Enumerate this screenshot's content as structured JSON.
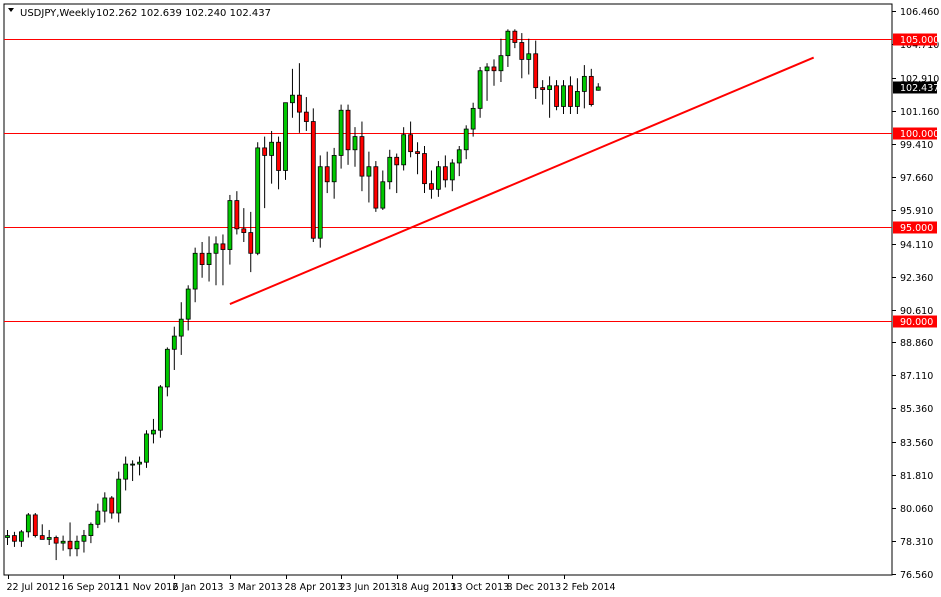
{
  "header": {
    "symbol": "USDJPY,Weekly",
    "ohlc": "102.262 102.639 102.240 102.437"
  },
  "chart_data": {
    "type": "candlestick",
    "symbol": "USDJPY",
    "timeframe": "Weekly",
    "last_ohlc": {
      "open": 102.262,
      "high": 102.639,
      "low": 102.24,
      "close": 102.437
    },
    "current_price": 102.437,
    "current_price_label": "102.437",
    "ylim": [
      76.56,
      106.42
    ],
    "y_ticks": [
      "106.460",
      "104.710",
      "102.910",
      "101.160",
      "99.410",
      "97.660",
      "95.910",
      "94.110",
      "92.360",
      "90.610",
      "88.860",
      "87.110",
      "85.360",
      "83.560",
      "81.810",
      "80.060",
      "78.310",
      "76.560"
    ],
    "x_ticks": [
      "22 Jul 2012",
      "16 Sep 2012",
      "11 Nov 2012",
      "6 Jan 2013",
      "3 Mar 2013",
      "28 Apr 2013",
      "23 Jun 2013",
      "18 Aug 2013",
      "13 Oct 2013",
      "8 Dec 2013",
      "2 Feb 2014"
    ],
    "x_tick_bar_index": [
      0,
      8,
      16,
      24,
      32,
      40,
      48,
      56,
      64,
      72,
      80
    ],
    "horizontal_levels": [
      {
        "value": 105.0,
        "label": "105.000"
      },
      {
        "value": 100.0,
        "label": "100.000"
      },
      {
        "value": 95.0,
        "label": "95.000"
      },
      {
        "value": 90.0,
        "label": "90.000"
      }
    ],
    "trendline": {
      "start": {
        "bar": 32,
        "price": 90.9
      },
      "end": {
        "bar": 116,
        "price": 104.0
      }
    },
    "colors": {
      "bull": "#00c800",
      "bear": "#ff0000",
      "levels": "#ff0000",
      "trendline": "#ff0000",
      "price_tag": "#000000"
    },
    "candles": [
      [
        78.5,
        78.9,
        78.1,
        78.6
      ],
      [
        78.6,
        78.8,
        78.0,
        78.3
      ],
      [
        78.3,
        78.9,
        78.0,
        78.8
      ],
      [
        78.8,
        79.8,
        78.5,
        79.7
      ],
      [
        79.7,
        79.8,
        78.5,
        78.6
      ],
      [
        78.6,
        79.2,
        78.4,
        78.4
      ],
      [
        78.4,
        78.9,
        78.1,
        78.5
      ],
      [
        78.5,
        78.6,
        77.3,
        78.2
      ],
      [
        78.2,
        78.6,
        77.8,
        78.3
      ],
      [
        78.3,
        79.3,
        77.5,
        77.9
      ],
      [
        77.9,
        78.6,
        77.5,
        78.3
      ],
      [
        78.3,
        78.9,
        77.7,
        78.6
      ],
      [
        78.6,
        79.3,
        78.2,
        79.2
      ],
      [
        79.2,
        80.3,
        79.0,
        79.9
      ],
      [
        79.9,
        80.9,
        79.3,
        80.6
      ],
      [
        80.6,
        80.7,
        79.5,
        79.8
      ],
      [
        79.8,
        82.0,
        79.3,
        81.6
      ],
      [
        81.6,
        82.8,
        81.0,
        82.4
      ],
      [
        82.4,
        82.6,
        81.5,
        82.4
      ],
      [
        82.4,
        82.8,
        81.8,
        82.5
      ],
      [
        82.5,
        84.2,
        82.2,
        84.0
      ],
      [
        84.0,
        84.8,
        83.5,
        84.2
      ],
      [
        84.2,
        86.6,
        83.8,
        86.5
      ],
      [
        86.5,
        88.6,
        86.0,
        88.5
      ],
      [
        88.5,
        89.7,
        87.4,
        89.2
      ],
      [
        89.2,
        91.0,
        88.2,
        90.1
      ],
      [
        90.1,
        91.9,
        89.5,
        91.7
      ],
      [
        91.7,
        93.9,
        91.0,
        93.6
      ],
      [
        93.6,
        94.2,
        92.3,
        93.0
      ],
      [
        93.0,
        94.5,
        92.1,
        93.6
      ],
      [
        93.6,
        94.5,
        91.9,
        94.1
      ],
      [
        94.1,
        94.6,
        91.9,
        93.8
      ],
      [
        93.8,
        96.7,
        93.0,
        96.4
      ],
      [
        96.4,
        96.9,
        94.6,
        94.9
      ],
      [
        94.9,
        96.0,
        94.2,
        94.7
      ],
      [
        94.7,
        95.8,
        92.6,
        93.6
      ],
      [
        93.6,
        99.5,
        93.5,
        99.2
      ],
      [
        99.2,
        99.8,
        96.0,
        98.8
      ],
      [
        98.8,
        100.1,
        97.3,
        99.5
      ],
      [
        99.5,
        99.8,
        97.0,
        98.0
      ],
      [
        98.0,
        101.6,
        97.5,
        101.6
      ],
      [
        101.6,
        103.4,
        100.8,
        102.0
      ],
      [
        102.0,
        103.7,
        100.0,
        101.1
      ],
      [
        101.1,
        101.9,
        100.1,
        100.6
      ],
      [
        100.6,
        101.3,
        94.2,
        94.4
      ],
      [
        94.4,
        98.8,
        93.9,
        98.2
      ],
      [
        98.2,
        99.0,
        96.8,
        97.4
      ],
      [
        97.4,
        99.2,
        96.5,
        98.8
      ],
      [
        98.8,
        101.5,
        98.1,
        101.2
      ],
      [
        101.2,
        101.5,
        98.3,
        99.1
      ],
      [
        99.1,
        100.3,
        98.2,
        99.8
      ],
      [
        99.8,
        100.6,
        96.9,
        97.7
      ],
      [
        97.7,
        99.0,
        96.3,
        98.2
      ],
      [
        98.2,
        98.5,
        95.8,
        96.0
      ],
      [
        96.0,
        98.0,
        95.9,
        97.4
      ],
      [
        97.4,
        99.1,
        97.0,
        98.7
      ],
      [
        98.7,
        98.9,
        96.8,
        98.3
      ],
      [
        98.3,
        100.3,
        98.0,
        99.9
      ],
      [
        99.9,
        100.6,
        98.7,
        99.0
      ],
      [
        99.0,
        99.5,
        97.8,
        98.9
      ],
      [
        98.9,
        99.3,
        96.8,
        97.3
      ],
      [
        97.3,
        98.0,
        96.5,
        97.0
      ],
      [
        97.0,
        98.5,
        96.6,
        98.2
      ],
      [
        98.2,
        98.8,
        97.1,
        97.5
      ],
      [
        97.5,
        98.6,
        96.9,
        98.4
      ],
      [
        98.4,
        99.3,
        97.7,
        99.1
      ],
      [
        99.1,
        100.4,
        98.6,
        100.2
      ],
      [
        100.2,
        101.6,
        99.8,
        101.3
      ],
      [
        101.3,
        103.5,
        100.8,
        103.3
      ],
      [
        103.3,
        103.7,
        101.7,
        103.5
      ],
      [
        103.5,
        103.9,
        102.5,
        103.3
      ],
      [
        103.3,
        105.0,
        102.7,
        104.1
      ],
      [
        104.1,
        105.5,
        103.5,
        105.4
      ],
      [
        105.4,
        105.5,
        104.5,
        104.8
      ],
      [
        104.8,
        105.3,
        102.9,
        103.9
      ],
      [
        103.9,
        105.0,
        103.1,
        104.2
      ],
      [
        104.2,
        104.9,
        101.8,
        102.4
      ],
      [
        102.4,
        102.8,
        101.5,
        102.3
      ],
      [
        102.3,
        103.0,
        100.8,
        102.5
      ],
      [
        102.5,
        102.8,
        101.2,
        101.4
      ],
      [
        101.4,
        102.8,
        101.0,
        102.5
      ],
      [
        102.5,
        103.0,
        101.0,
        101.4
      ],
      [
        101.4,
        102.9,
        101.0,
        102.2
      ],
      [
        102.2,
        103.6,
        101.3,
        103.0
      ],
      [
        103.0,
        103.4,
        101.4,
        101.5
      ],
      [
        102.262,
        102.639,
        102.24,
        102.437
      ]
    ]
  }
}
